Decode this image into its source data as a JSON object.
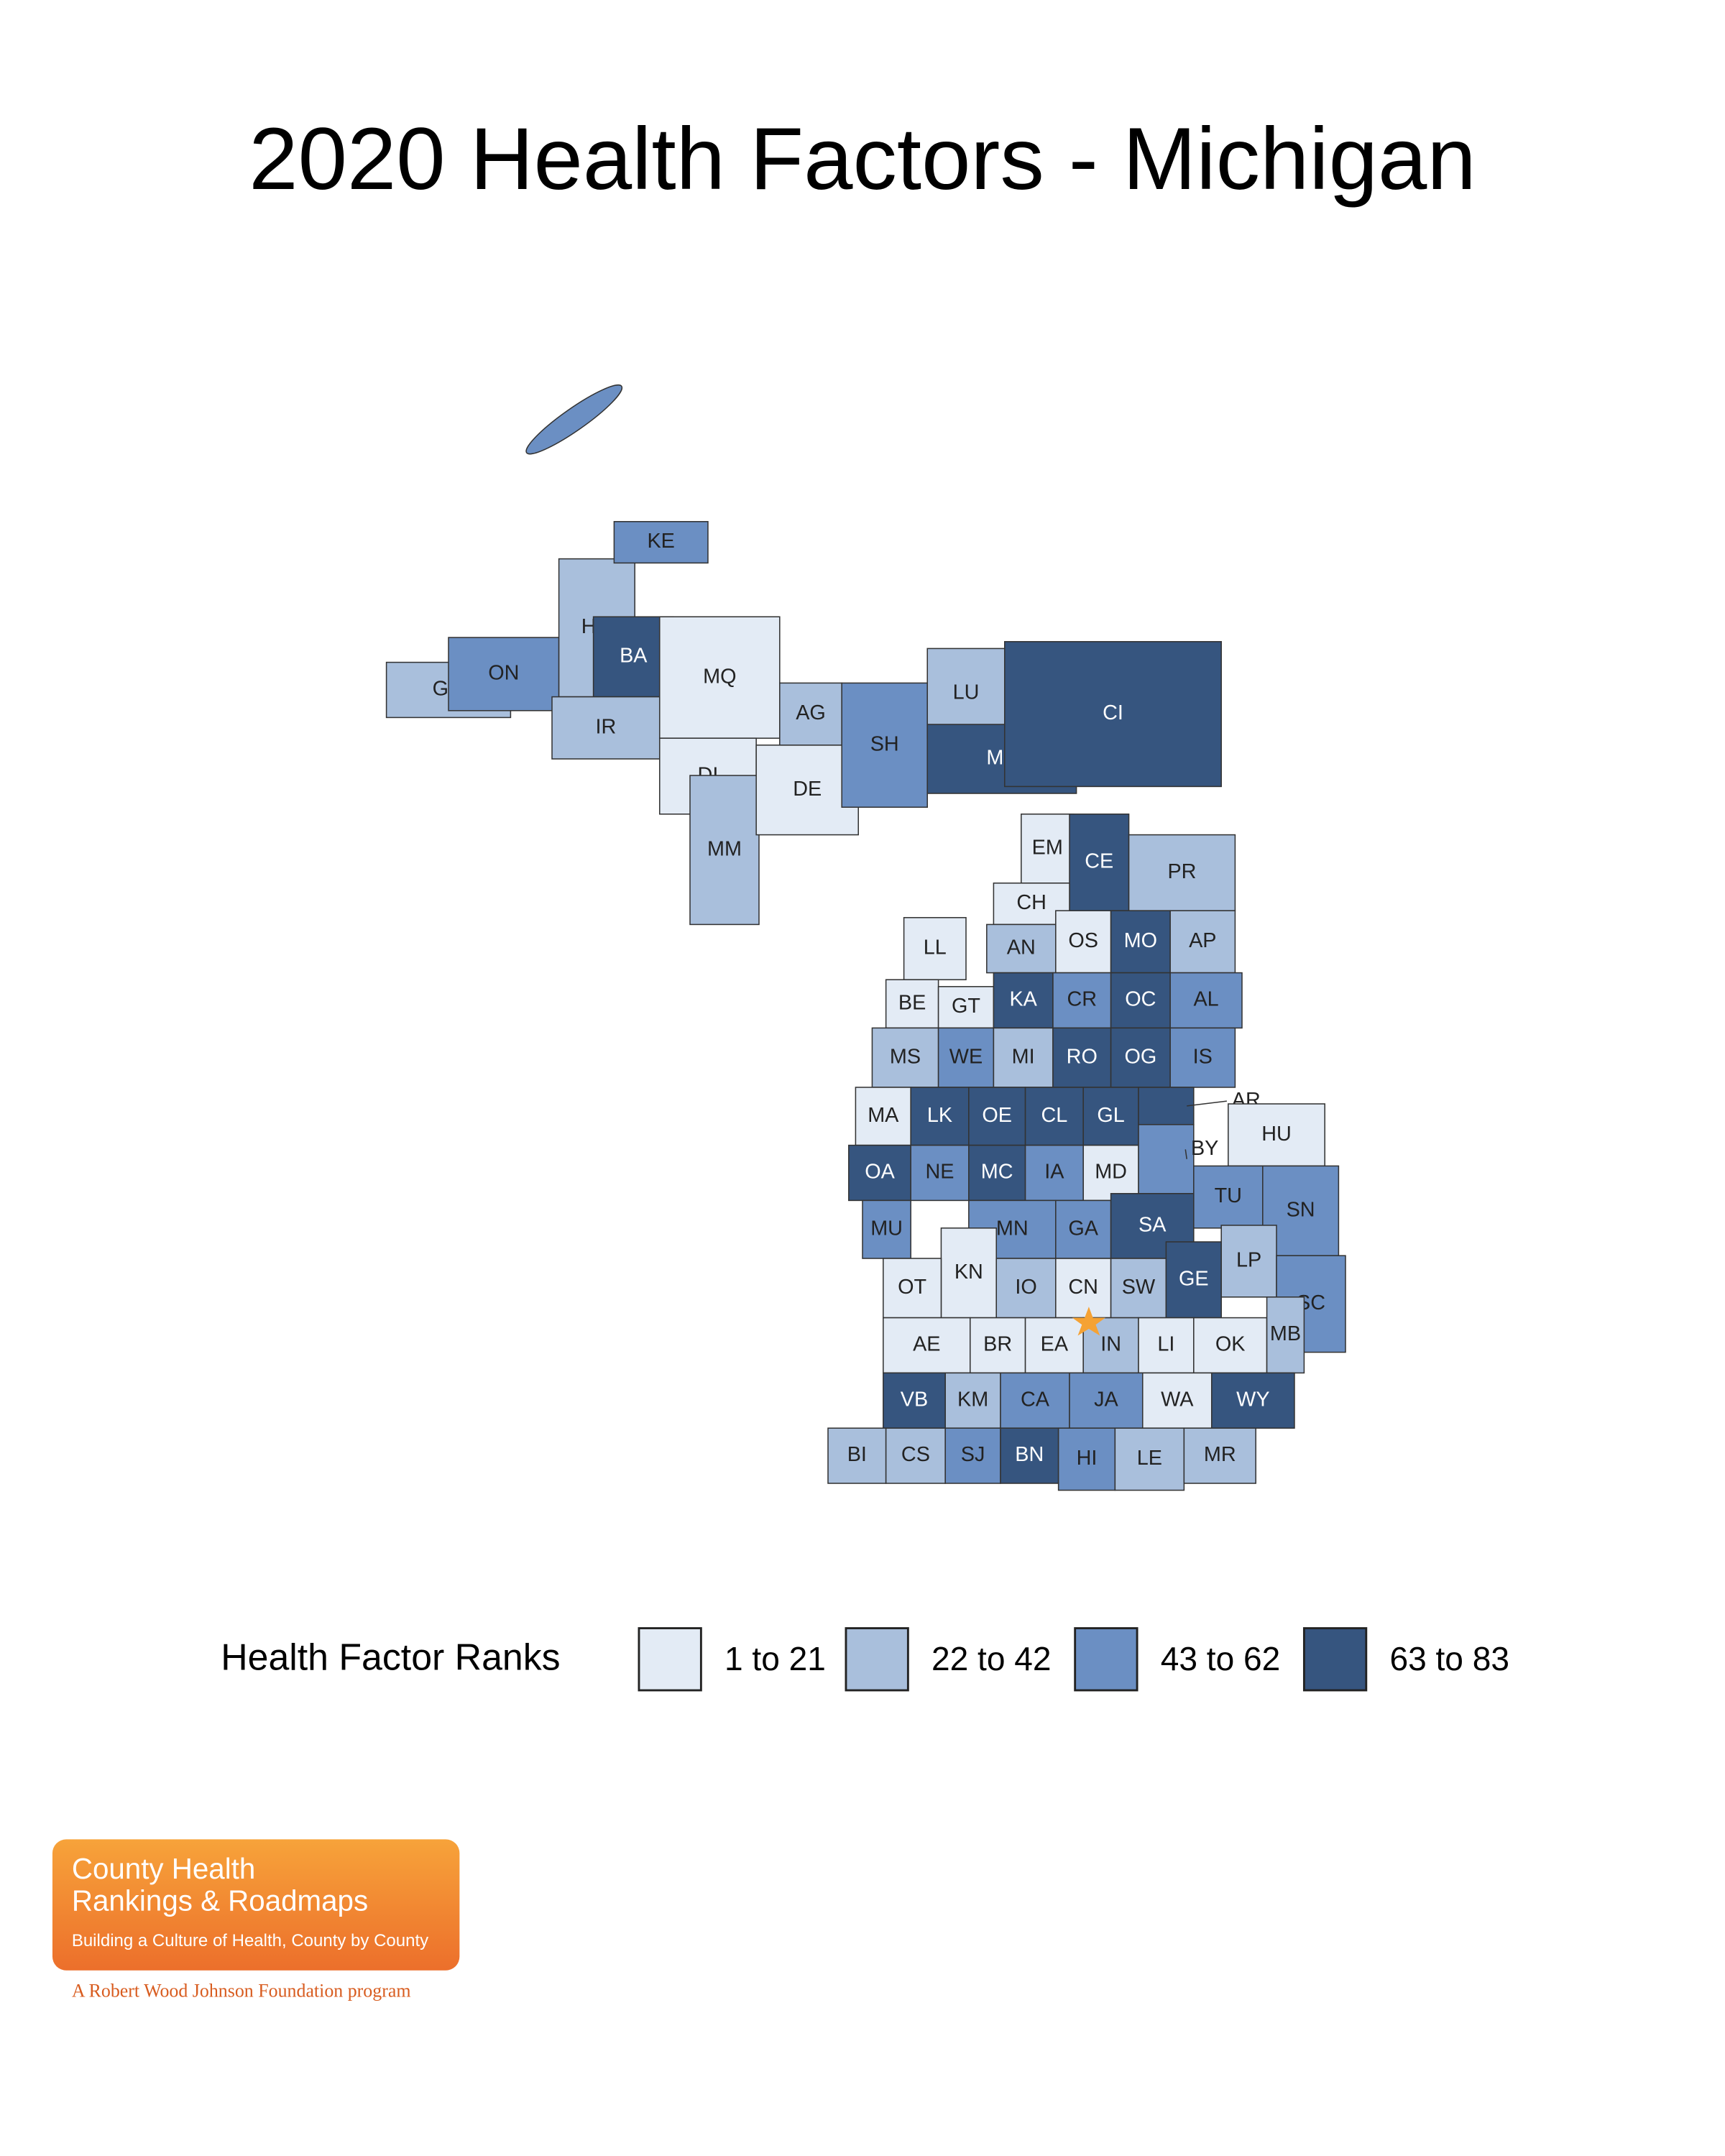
{
  "title": "2020 Health Factors - Michigan",
  "legend": {
    "title": "Health Factor Ranks",
    "bins": [
      {
        "label": "1 to 21",
        "color": "#e3ebf5"
      },
      {
        "label": "22 to 42",
        "color": "#a9bfdc"
      },
      {
        "label": "43 to 62",
        "color": "#6b8fc3"
      },
      {
        "label": "63 to 83",
        "color": "#36557f"
      }
    ]
  },
  "counties": [
    {
      "label": "GO",
      "bin": 1
    },
    {
      "label": "ON",
      "bin": 2
    },
    {
      "label": "HO",
      "bin": 1
    },
    {
      "label": "KE",
      "bin": 2
    },
    {
      "label": "BA",
      "bin": 3
    },
    {
      "label": "IR",
      "bin": 1
    },
    {
      "label": "MQ",
      "bin": 0
    },
    {
      "label": "DI",
      "bin": 0
    },
    {
      "label": "MM",
      "bin": 1
    },
    {
      "label": "DE",
      "bin": 0
    },
    {
      "label": "AG",
      "bin": 1
    },
    {
      "label": "SH",
      "bin": 2
    },
    {
      "label": "LU",
      "bin": 1
    },
    {
      "label": "MK",
      "bin": 3
    },
    {
      "label": "CI",
      "bin": 3
    },
    {
      "label": "EM",
      "bin": 0
    },
    {
      "label": "CE",
      "bin": 3
    },
    {
      "label": "PR",
      "bin": 1
    },
    {
      "label": "CH",
      "bin": 0
    },
    {
      "label": "LL",
      "bin": 0
    },
    {
      "label": "AN",
      "bin": 1
    },
    {
      "label": "OS",
      "bin": 0
    },
    {
      "label": "MO",
      "bin": 3
    },
    {
      "label": "AP",
      "bin": 1
    },
    {
      "label": "BE",
      "bin": 0
    },
    {
      "label": "GT",
      "bin": 0
    },
    {
      "label": "KA",
      "bin": 3
    },
    {
      "label": "CR",
      "bin": 2
    },
    {
      "label": "OC",
      "bin": 3
    },
    {
      "label": "AL",
      "bin": 2
    },
    {
      "label": "MS",
      "bin": 1
    },
    {
      "label": "WE",
      "bin": 2
    },
    {
      "label": "MI",
      "bin": 1
    },
    {
      "label": "RO",
      "bin": 3
    },
    {
      "label": "OG",
      "bin": 3
    },
    {
      "label": "IS",
      "bin": 2
    },
    {
      "label": "MA",
      "bin": 0
    },
    {
      "label": "LK",
      "bin": 3
    },
    {
      "label": "OE",
      "bin": 3
    },
    {
      "label": "CL",
      "bin": 3
    },
    {
      "label": "GL",
      "bin": 3
    },
    {
      "label": "AR",
      "bin": 3
    },
    {
      "label": "OA",
      "bin": 3
    },
    {
      "label": "NE",
      "bin": 2
    },
    {
      "label": "MC",
      "bin": 3
    },
    {
      "label": "IA",
      "bin": 2
    },
    {
      "label": "MD",
      "bin": 0
    },
    {
      "label": "BY",
      "bin": 2
    },
    {
      "label": "HU",
      "bin": 0
    },
    {
      "label": "MU",
      "bin": 2
    },
    {
      "label": "MN",
      "bin": 2
    },
    {
      "label": "GA",
      "bin": 2
    },
    {
      "label": "SA",
      "bin": 3
    },
    {
      "label": "TU",
      "bin": 2
    },
    {
      "label": "SN",
      "bin": 2
    },
    {
      "label": "KN",
      "bin": 0
    },
    {
      "label": "OT",
      "bin": 0
    },
    {
      "label": "IO",
      "bin": 1
    },
    {
      "label": "CN",
      "bin": 0
    },
    {
      "label": "SW",
      "bin": 1
    },
    {
      "label": "GE",
      "bin": 3
    },
    {
      "label": "LP",
      "bin": 1
    },
    {
      "label": "SC",
      "bin": 2
    },
    {
      "label": "AE",
      "bin": 0
    },
    {
      "label": "BR",
      "bin": 0
    },
    {
      "label": "EA",
      "bin": 0
    },
    {
      "label": "IN",
      "bin": 1
    },
    {
      "label": "LI",
      "bin": 0
    },
    {
      "label": "OK",
      "bin": 0
    },
    {
      "label": "MB",
      "bin": 1
    },
    {
      "label": "VB",
      "bin": 3
    },
    {
      "label": "KM",
      "bin": 1
    },
    {
      "label": "CA",
      "bin": 2
    },
    {
      "label": "JA",
      "bin": 2
    },
    {
      "label": "WA",
      "bin": 0
    },
    {
      "label": "WY",
      "bin": 3
    },
    {
      "label": "BI",
      "bin": 1
    },
    {
      "label": "CS",
      "bin": 1
    },
    {
      "label": "SJ",
      "bin": 2
    },
    {
      "label": "BN",
      "bin": 3
    },
    {
      "label": "HI",
      "bin": 2
    },
    {
      "label": "LE",
      "bin": 1
    },
    {
      "label": "MR",
      "bin": 1
    }
  ],
  "logo": {
    "line1": "County Health",
    "line2": "Rankings & Roadmaps",
    "tagline": "Building a Culture of Health, County by County",
    "sponsor": "A Robert Wood Johnson Foundation program"
  }
}
